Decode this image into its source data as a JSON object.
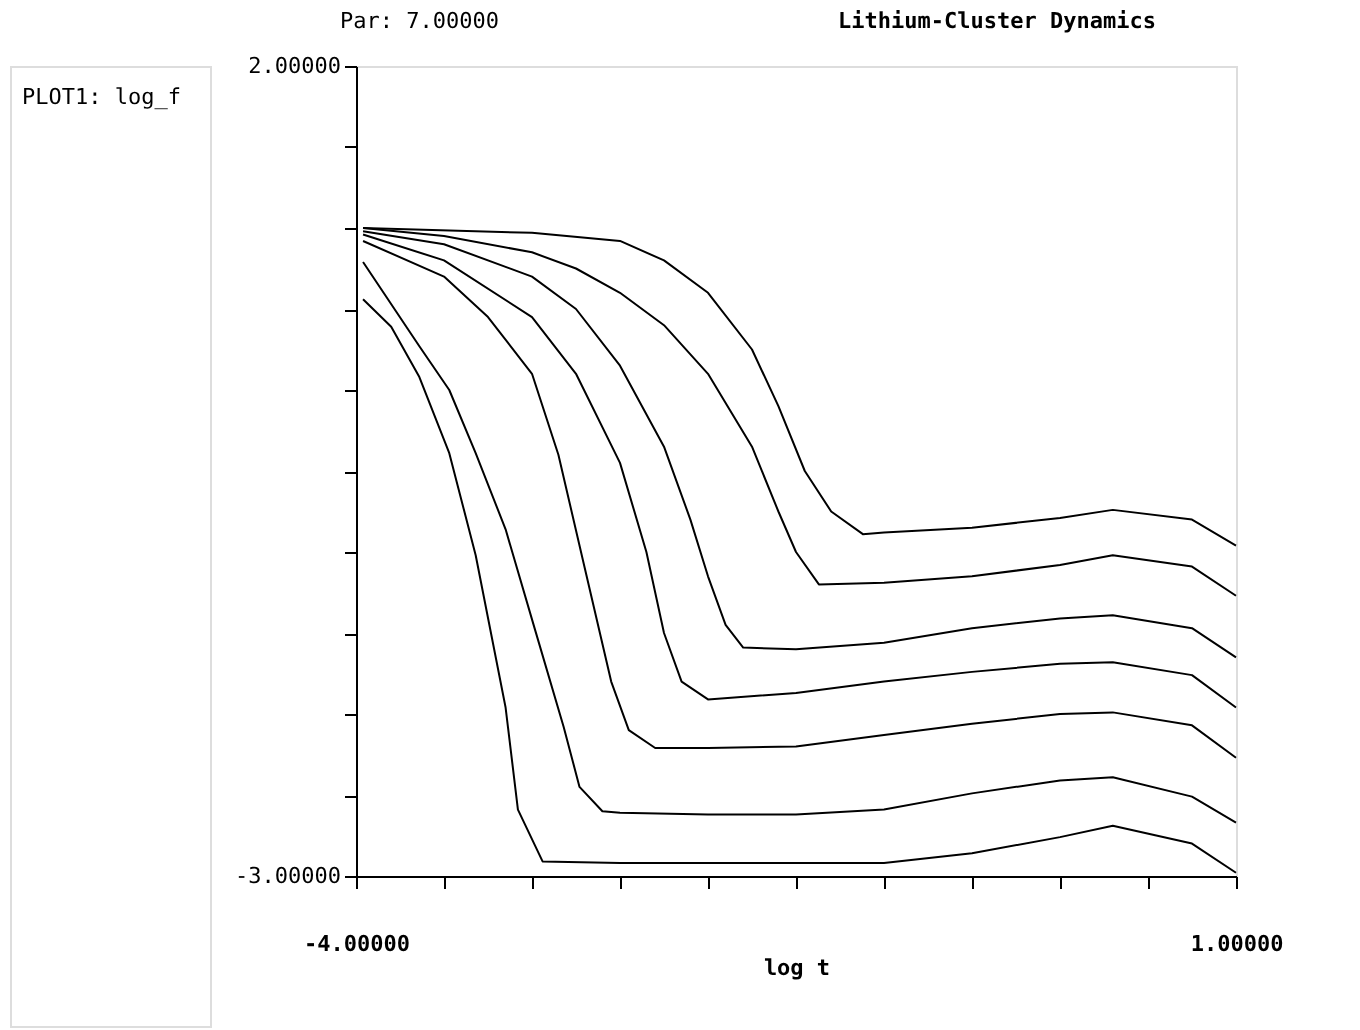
{
  "chart_data": {
    "type": "line",
    "title": "Lithium-Cluster Dynamics",
    "subtitle": "Par: 7.00000",
    "xlabel": "log t",
    "annotations": [
      "PLOT1: log_f"
    ],
    "xlim": [
      -4,
      1
    ],
    "ylim": [
      -3,
      2
    ],
    "xticks": [
      {
        "value": -4,
        "label": "-4.00000"
      },
      {
        "value": -3.5,
        "label": null
      },
      {
        "value": -3,
        "label": null
      },
      {
        "value": -2.5,
        "label": null
      },
      {
        "value": -2,
        "label": null
      },
      {
        "value": -1.5,
        "label": null
      },
      {
        "value": -1,
        "label": null
      },
      {
        "value": -0.5,
        "label": null
      },
      {
        "value": 0,
        "label": null
      },
      {
        "value": 0.5,
        "label": null
      },
      {
        "value": 1,
        "label": "1.00000"
      }
    ],
    "yticks": [
      {
        "value": -3,
        "label": "-3.00000"
      },
      {
        "value": -2.5,
        "label": null
      },
      {
        "value": -2,
        "label": null
      },
      {
        "value": -1.5,
        "label": null
      },
      {
        "value": -1,
        "label": null
      },
      {
        "value": -0.5,
        "label": null
      },
      {
        "value": 0,
        "label": null
      },
      {
        "value": 0.5,
        "label": null
      },
      {
        "value": 1,
        "label": null
      },
      {
        "value": 1.5,
        "label": null
      },
      {
        "value": 2,
        "label": "2.00000"
      }
    ],
    "grid": false,
    "legend": false,
    "marker": "none",
    "line_style": "solid",
    "series": [
      {
        "color": "#000000",
        "x": [
          -3.96,
          -3,
          -2.5,
          -2.25,
          -2,
          -1.75,
          -1.6,
          -1.45,
          -1.3,
          -1.12,
          -1,
          -0.5,
          0,
          0.3,
          0.75,
          1
        ],
        "values": [
          1.0,
          0.97,
          0.92,
          0.8,
          0.6,
          0.25,
          -0.1,
          -0.5,
          -0.75,
          -0.89,
          -0.88,
          -0.85,
          -0.79,
          -0.74,
          -0.8,
          -0.96
        ]
      },
      {
        "color": "#000000",
        "x": [
          -3.96,
          -3.5,
          -3,
          -2.75,
          -2.5,
          -2.25,
          -2,
          -1.75,
          -1.6,
          -1.5,
          -1.37,
          -1,
          -0.5,
          0,
          0.3,
          0.75,
          1
        ],
        "values": [
          1.0,
          0.95,
          0.85,
          0.75,
          0.6,
          0.4,
          0.1,
          -0.35,
          -0.75,
          -1.0,
          -1.2,
          -1.19,
          -1.15,
          -1.08,
          -1.02,
          -1.09,
          -1.27
        ]
      },
      {
        "color": "#000000",
        "x": [
          -3.96,
          -3.5,
          -3,
          -2.75,
          -2.5,
          -2.25,
          -2.1,
          -2,
          -1.9,
          -1.8,
          -1.5,
          -1,
          -0.5,
          0,
          0.3,
          0.75,
          1
        ],
        "values": [
          0.98,
          0.9,
          0.7,
          0.5,
          0.15,
          -0.35,
          -0.8,
          -1.15,
          -1.45,
          -1.59,
          -1.6,
          -1.56,
          -1.47,
          -1.41,
          -1.39,
          -1.47,
          -1.65
        ]
      },
      {
        "color": "#000000",
        "x": [
          -3.96,
          -3.5,
          -3,
          -2.75,
          -2.5,
          -2.35,
          -2.25,
          -2.15,
          -2,
          -1.5,
          -1,
          -0.5,
          0,
          0.3,
          0.75,
          1
        ],
        "values": [
          0.96,
          0.8,
          0.45,
          0.1,
          -0.45,
          -1.0,
          -1.5,
          -1.8,
          -1.91,
          -1.87,
          -1.8,
          -1.74,
          -1.69,
          -1.68,
          -1.76,
          -1.96
        ]
      },
      {
        "color": "#000000",
        "x": [
          -3.96,
          -3.5,
          -3.25,
          -3,
          -2.85,
          -2.7,
          -2.55,
          -2.45,
          -2.3,
          -2,
          -1.5,
          -1,
          -0.5,
          0,
          0.3,
          0.75,
          1
        ],
        "values": [
          0.92,
          0.7,
          0.45,
          0.1,
          -0.4,
          -1.1,
          -1.8,
          -2.1,
          -2.21,
          -2.21,
          -2.2,
          -2.13,
          -2.06,
          -2.0,
          -1.99,
          -2.07,
          -2.27
        ]
      },
      {
        "color": "#000000",
        "x": [
          -3.96,
          -3.64,
          -3.47,
          -3.32,
          -3.15,
          -2.98,
          -2.82,
          -2.73,
          -2.6,
          -2.5,
          -2,
          -1.5,
          -1,
          -0.5,
          0,
          0.3,
          0.75,
          1
        ],
        "values": [
          0.79,
          0.27,
          0.0,
          -0.39,
          -0.86,
          -1.49,
          -2.08,
          -2.45,
          -2.6,
          -2.61,
          -2.62,
          -2.62,
          -2.59,
          -2.49,
          -2.41,
          -2.39,
          -2.51,
          -2.67
        ]
      },
      {
        "color": "#000000",
        "x": [
          -3.96,
          -3.8,
          -3.64,
          -3.47,
          -3.32,
          -3.15,
          -3.08,
          -2.94,
          -2.5,
          -1.5,
          -1,
          -0.5,
          0,
          0.3,
          0.75,
          1
        ],
        "values": [
          0.56,
          0.39,
          0.08,
          -0.39,
          -1.02,
          -1.96,
          -2.59,
          -2.91,
          -2.92,
          -2.92,
          -2.92,
          -2.86,
          -2.76,
          -2.69,
          -2.8,
          -2.98
        ]
      }
    ]
  }
}
